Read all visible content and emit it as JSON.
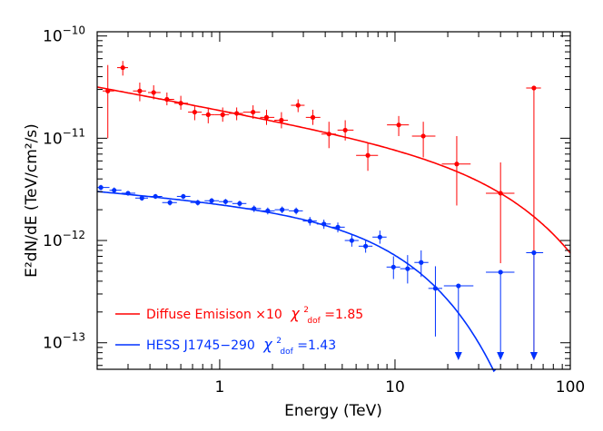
{
  "chart_data": {
    "type": "scatter",
    "xlabel": "Energy (TeV)",
    "ylabel": "E²dN/dE (TeV/cm²/s)",
    "x_scale": "log",
    "y_scale": "log",
    "xlim": [
      0.2,
      100
    ],
    "ylim": [
      5.5e-14,
      1.1e-10
    ],
    "x_ticks": [
      {
        "value": 1,
        "label": "1"
      },
      {
        "value": 10,
        "label": "10"
      },
      {
        "value": 100,
        "label": "100"
      }
    ],
    "y_ticks": [
      {
        "value": 1e-13,
        "base": "10",
        "exp": "−13"
      },
      {
        "value": 1e-12,
        "base": "10",
        "exp": "−12"
      },
      {
        "value": 1e-11,
        "base": "10",
        "exp": "−11"
      },
      {
        "value": 1e-10,
        "base": "10",
        "exp": "−10"
      }
    ],
    "grid": false,
    "legend_position": "bottom-left",
    "series": [
      {
        "name": "Diffuse Emisison ×10",
        "chi_label": "χ",
        "chi_sup": "2",
        "chi_sub": "dof",
        "chi_value": "=1.85",
        "color": "#ff0000",
        "model": {
          "type": "power_law_cutoff",
          "norm": 1.9e-11,
          "index": 2.32,
          "cutoff": 57
        },
        "points": [
          {
            "x": 0.23,
            "y": 2.9e-11,
            "xlo": 0.215,
            "xhi": 0.25,
            "ylo": 1e-11,
            "yhi": 5.2e-11
          },
          {
            "x": 0.28,
            "y": 4.9e-11,
            "xlo": 0.26,
            "xhi": 0.3,
            "ylo": 4.1e-11,
            "yhi": 5.7e-11
          },
          {
            "x": 0.35,
            "y": 2.9e-11,
            "xlo": 0.32,
            "xhi": 0.38,
            "ylo": 2.3e-11,
            "yhi": 3.5e-11
          },
          {
            "x": 0.42,
            "y": 2.8e-11,
            "xlo": 0.39,
            "xhi": 0.46,
            "ylo": 2.4e-11,
            "yhi": 3.3e-11
          },
          {
            "x": 0.5,
            "y": 2.4e-11,
            "xlo": 0.46,
            "xhi": 0.55,
            "ylo": 2.1e-11,
            "yhi": 2.8e-11
          },
          {
            "x": 0.6,
            "y": 2.2e-11,
            "xlo": 0.55,
            "xhi": 0.66,
            "ylo": 1.9e-11,
            "yhi": 2.6e-11
          },
          {
            "x": 0.72,
            "y": 1.8e-11,
            "xlo": 0.66,
            "xhi": 0.79,
            "ylo": 1.5e-11,
            "yhi": 2.1e-11
          },
          {
            "x": 0.86,
            "y": 1.7e-11,
            "xlo": 0.79,
            "xhi": 0.94,
            "ylo": 1.4e-11,
            "yhi": 2e-11
          },
          {
            "x": 1.04,
            "y": 1.7e-11,
            "xlo": 0.94,
            "xhi": 1.13,
            "ylo": 1.45e-11,
            "yhi": 2e-11
          },
          {
            "x": 1.25,
            "y": 1.75e-11,
            "xlo": 1.13,
            "xhi": 1.36,
            "ylo": 1.5e-11,
            "yhi": 2e-11
          },
          {
            "x": 1.55,
            "y": 1.8e-11,
            "xlo": 1.36,
            "xhi": 1.7,
            "ylo": 1.55e-11,
            "yhi": 2.1e-11
          },
          {
            "x": 1.85,
            "y": 1.6e-11,
            "xlo": 1.7,
            "xhi": 2.05,
            "ylo": 1.35e-11,
            "yhi": 1.9e-11
          },
          {
            "x": 2.25,
            "y": 1.5e-11,
            "xlo": 2.05,
            "xhi": 2.45,
            "ylo": 1.25e-11,
            "yhi": 1.8e-11
          },
          {
            "x": 2.8,
            "y": 2.1e-11,
            "xlo": 2.55,
            "xhi": 3.05,
            "ylo": 1.8e-11,
            "yhi": 2.4e-11
          },
          {
            "x": 3.4,
            "y": 1.6e-11,
            "xlo": 3.1,
            "xhi": 3.75,
            "ylo": 1.35e-11,
            "yhi": 1.9e-11
          },
          {
            "x": 4.2,
            "y": 1.1e-11,
            "xlo": 3.8,
            "xhi": 4.6,
            "ylo": 8e-12,
            "yhi": 1.45e-11
          },
          {
            "x": 5.2,
            "y": 1.2e-11,
            "xlo": 4.7,
            "xhi": 5.8,
            "ylo": 9.5e-12,
            "yhi": 1.5e-11
          },
          {
            "x": 7.0,
            "y": 6.8e-12,
            "xlo": 6.0,
            "xhi": 8.0,
            "ylo": 4.8e-12,
            "yhi": 9e-12
          },
          {
            "x": 10.5,
            "y": 1.35e-11,
            "xlo": 9.0,
            "xhi": 12.0,
            "ylo": 1.05e-11,
            "yhi": 1.65e-11
          },
          {
            "x": 14.5,
            "y": 1.05e-11,
            "xlo": 12.5,
            "xhi": 17.0,
            "ylo": 6.5e-12,
            "yhi": 1.45e-11
          },
          {
            "x": 22.5,
            "y": 5.6e-12,
            "xlo": 18.5,
            "xhi": 27.0,
            "ylo": 2.2e-12,
            "yhi": 1.05e-11
          },
          {
            "x": 40,
            "y": 2.9e-12,
            "xlo": 33,
            "xhi": 48,
            "ylo": 6e-13,
            "yhi": 5.8e-12
          },
          {
            "x": 62,
            "y": 3.1e-11,
            "xlo": 56,
            "xhi": 68,
            "upper_limit": true
          }
        ]
      },
      {
        "name": "HESS J1745−290",
        "chi_label": "χ",
        "chi_sup": "2",
        "chi_sub": "dof",
        "chi_value": "=1.43",
        "color": "#0032ff",
        "model": {
          "type": "power_law_cutoff",
          "norm": 2.45e-12,
          "index": 2.14,
          "cutoff": 11
        },
        "points": [
          {
            "x": 0.21,
            "y": 3.3e-12,
            "xlo": 0.2,
            "xhi": 0.235,
            "ylo": 3.1e-12,
            "yhi": 3.5e-12
          },
          {
            "x": 0.25,
            "y": 3.1e-12,
            "xlo": 0.235,
            "xhi": 0.275,
            "ylo": 2.95e-12,
            "yhi": 3.3e-12
          },
          {
            "x": 0.3,
            "y": 2.9e-12,
            "xlo": 0.275,
            "xhi": 0.33,
            "ylo": 2.75e-12,
            "yhi": 3.05e-12
          },
          {
            "x": 0.36,
            "y": 2.6e-12,
            "xlo": 0.33,
            "xhi": 0.39,
            "ylo": 2.45e-12,
            "yhi": 2.75e-12
          },
          {
            "x": 0.43,
            "y": 2.7e-12,
            "xlo": 0.39,
            "xhi": 0.47,
            "ylo": 2.55e-12,
            "yhi": 2.85e-12
          },
          {
            "x": 0.52,
            "y": 2.35e-12,
            "xlo": 0.47,
            "xhi": 0.57,
            "ylo": 2.2e-12,
            "yhi": 2.5e-12
          },
          {
            "x": 0.62,
            "y": 2.7e-12,
            "xlo": 0.57,
            "xhi": 0.68,
            "ylo": 2.55e-12,
            "yhi": 2.85e-12
          },
          {
            "x": 0.75,
            "y": 2.35e-12,
            "xlo": 0.68,
            "xhi": 0.82,
            "ylo": 2.2e-12,
            "yhi": 2.5e-12
          },
          {
            "x": 0.9,
            "y": 2.45e-12,
            "xlo": 0.82,
            "xhi": 0.99,
            "ylo": 2.3e-12,
            "yhi": 2.6e-12
          },
          {
            "x": 1.08,
            "y": 2.4e-12,
            "xlo": 0.99,
            "xhi": 1.18,
            "ylo": 2.25e-12,
            "yhi": 2.55e-12
          },
          {
            "x": 1.3,
            "y": 2.3e-12,
            "xlo": 1.18,
            "xhi": 1.42,
            "ylo": 2.15e-12,
            "yhi": 2.45e-12
          },
          {
            "x": 1.57,
            "y": 2.05e-12,
            "xlo": 1.42,
            "xhi": 1.72,
            "ylo": 1.9e-12,
            "yhi": 2.2e-12
          },
          {
            "x": 1.88,
            "y": 1.95e-12,
            "xlo": 1.72,
            "xhi": 2.06,
            "ylo": 1.8e-12,
            "yhi": 2.1e-12
          },
          {
            "x": 2.27,
            "y": 2e-12,
            "xlo": 2.06,
            "xhi": 2.48,
            "ylo": 1.85e-12,
            "yhi": 2.15e-12
          },
          {
            "x": 2.73,
            "y": 1.95e-12,
            "xlo": 2.48,
            "xhi": 2.98,
            "ylo": 1.8e-12,
            "yhi": 2.1e-12
          },
          {
            "x": 3.27,
            "y": 1.55e-12,
            "xlo": 2.98,
            "xhi": 3.58,
            "ylo": 1.4e-12,
            "yhi": 1.7e-12
          },
          {
            "x": 3.93,
            "y": 1.45e-12,
            "xlo": 3.58,
            "xhi": 4.3,
            "ylo": 1.3e-12,
            "yhi": 1.6e-12
          },
          {
            "x": 4.72,
            "y": 1.35e-12,
            "xlo": 4.3,
            "xhi": 5.17,
            "ylo": 1.2e-12,
            "yhi": 1.5e-12
          },
          {
            "x": 5.67,
            "y": 1e-12,
            "xlo": 5.17,
            "xhi": 6.2,
            "ylo": 8.7e-13,
            "yhi": 1.15e-12
          },
          {
            "x": 6.8,
            "y": 8.8e-13,
            "xlo": 6.2,
            "xhi": 7.44,
            "ylo": 7.6e-13,
            "yhi": 1e-12
          },
          {
            "x": 8.2,
            "y": 1.08e-12,
            "xlo": 7.44,
            "xhi": 8.95,
            "ylo": 9.3e-13,
            "yhi": 1.25e-12
          },
          {
            "x": 9.8,
            "y": 5.5e-13,
            "xlo": 8.95,
            "xhi": 10.7,
            "ylo": 4.2e-13,
            "yhi": 7e-13
          },
          {
            "x": 11.8,
            "y": 5.3e-13,
            "xlo": 10.7,
            "xhi": 12.9,
            "ylo": 3.8e-13,
            "yhi": 7.2e-13
          },
          {
            "x": 14.1,
            "y": 6.1e-13,
            "xlo": 12.9,
            "xhi": 15.5,
            "ylo": 4.4e-13,
            "yhi": 8e-13
          },
          {
            "x": 17,
            "y": 3.4e-13,
            "xlo": 15.5,
            "xhi": 18.6,
            "ylo": 1.15e-13,
            "yhi": 5.6e-13
          },
          {
            "x": 23,
            "y": 3.6e-13,
            "xlo": 19,
            "xhi": 28,
            "upper_limit": true
          },
          {
            "x": 40,
            "y": 4.9e-13,
            "xlo": 33,
            "xhi": 48,
            "upper_limit": true
          },
          {
            "x": 62,
            "y": 7.6e-13,
            "xlo": 56,
            "xhi": 70,
            "upper_limit": true
          }
        ]
      }
    ]
  }
}
